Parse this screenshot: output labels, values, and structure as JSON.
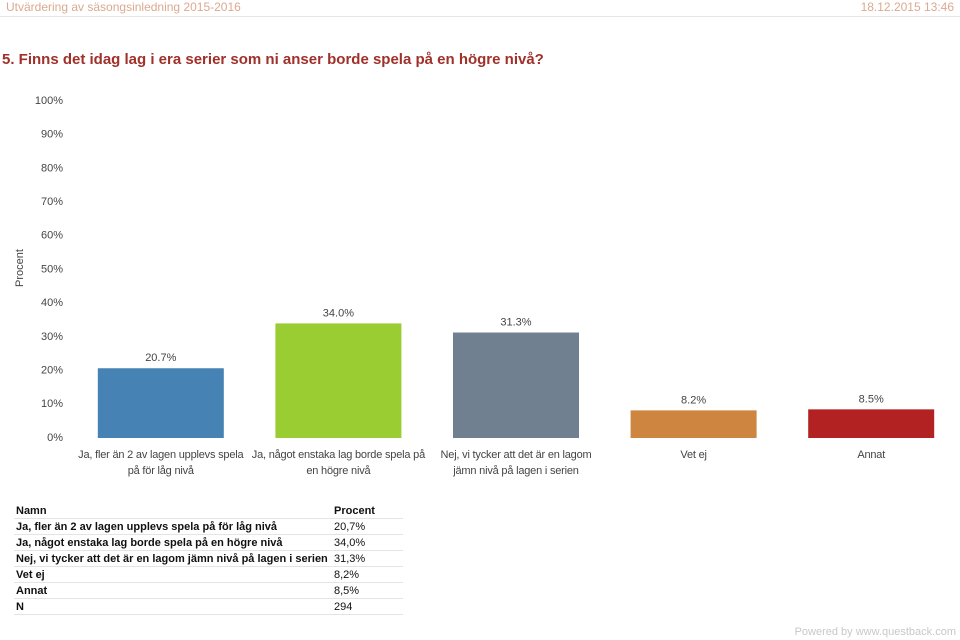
{
  "header": {
    "left": "Utvärdering av säsongsinledning 2015-2016",
    "right": "18.12.2015 13:46"
  },
  "question": "5. Finns det idag lag i era serier som ni anser borde spela på en högre nivå?",
  "chart_data": {
    "type": "bar",
    "ylabel": "Procent",
    "categories": [
      "Ja, fler än 2 av lagen upplevs spela på för låg nivå",
      "Ja, något enstaka lag borde spela på en högre nivå",
      "Nej, vi tycker att det är en lagom jämn nivå på lagen i serien",
      "Vet ej",
      "Annat"
    ],
    "values": [
      20.7,
      34.0,
      31.3,
      8.2,
      8.5
    ],
    "value_labels": [
      "20.7%",
      "34.0%",
      "31.3%",
      "8.2%",
      "8.5%"
    ],
    "colors": [
      "#4682b4",
      "#9acd32",
      "#708090",
      "#cd853f",
      "#b22222"
    ],
    "ylim": [
      0,
      100
    ],
    "yticks": [
      {
        "value": 0,
        "label": "0%"
      },
      {
        "value": 10,
        "label": "10%"
      },
      {
        "value": 20,
        "label": "20%"
      },
      {
        "value": 30,
        "label": "30%"
      },
      {
        "value": 40,
        "label": "40%"
      },
      {
        "value": 50,
        "label": "50%"
      },
      {
        "value": 60,
        "label": "60%"
      },
      {
        "value": 70,
        "label": "70%"
      },
      {
        "value": 80,
        "label": "80%"
      },
      {
        "value": 90,
        "label": "90%"
      },
      {
        "value": 100,
        "label": "100%"
      }
    ]
  },
  "table": {
    "header": [
      "Namn",
      "Procent"
    ],
    "rows": [
      [
        "Ja, fler än 2 av lagen upplevs spela på för låg nivå",
        "20,7%"
      ],
      [
        "Ja, något enstaka lag borde spela på en högre nivå",
        "34,0%"
      ],
      [
        "Nej, vi tycker att det är en lagom jämn nivå på lagen i serien",
        "31,3%"
      ],
      [
        "Vet ej",
        "8,2%"
      ],
      [
        "Annat",
        "8,5%"
      ],
      [
        "N",
        "294"
      ]
    ]
  },
  "footer": "Powered by www.questback.com"
}
